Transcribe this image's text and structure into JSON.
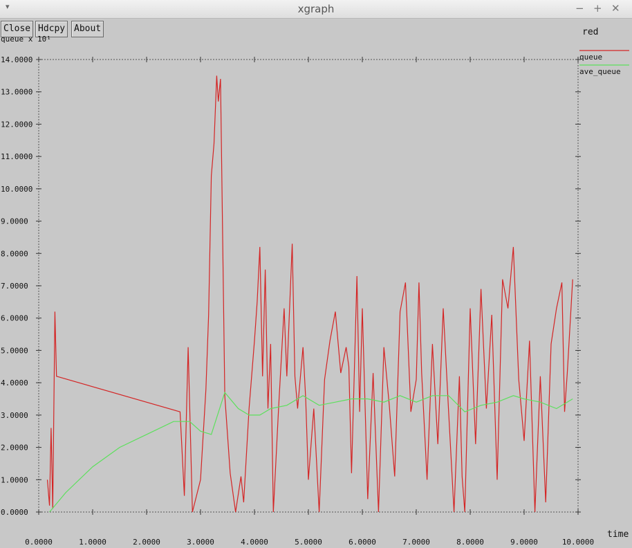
{
  "window": {
    "title": "xgraph",
    "menu_glyph": "▾",
    "minimize_glyph": "−",
    "maximize_glyph": "+",
    "close_glyph": "✕"
  },
  "toolbar": {
    "close_label": "Close",
    "hdcopy_label": "Hdcpy",
    "about_label": "About"
  },
  "chart_data": {
    "type": "line",
    "title": "red",
    "ylabel": "queue x 10¹",
    "xlabel": "time",
    "xlim": [
      0,
      10
    ],
    "ylim": [
      0,
      14
    ],
    "grid": false,
    "legend_position": "right",
    "x_ticks": [
      "0.0000",
      "1.0000",
      "2.0000",
      "3.0000",
      "4.0000",
      "5.0000",
      "6.0000",
      "7.0000",
      "8.0000",
      "9.0000",
      "10.0000"
    ],
    "y_ticks": [
      "0.0000",
      "1.0000",
      "2.0000",
      "3.0000",
      "4.0000",
      "5.0000",
      "6.0000",
      "7.0000",
      "8.0000",
      "9.0000",
      "10.0000",
      "11.0000",
      "12.0000",
      "13.0000",
      "14.0000"
    ],
    "series": [
      {
        "name": "queue",
        "color": "#d42424",
        "points": [
          [
            0.16,
            1.0
          ],
          [
            0.2,
            0.2
          ],
          [
            0.23,
            2.6
          ],
          [
            0.26,
            0.1
          ],
          [
            0.3,
            6.2
          ],
          [
            0.33,
            4.2
          ],
          [
            2.62,
            3.1
          ],
          [
            2.7,
            0.5
          ],
          [
            2.77,
            5.1
          ],
          [
            2.85,
            0.0
          ],
          [
            3.0,
            1.0
          ],
          [
            3.1,
            3.8
          ],
          [
            3.15,
            6.1
          ],
          [
            3.2,
            10.4
          ],
          [
            3.25,
            11.4
          ],
          [
            3.3,
            13.5
          ],
          [
            3.33,
            12.7
          ],
          [
            3.37,
            13.4
          ],
          [
            3.45,
            3.6
          ],
          [
            3.55,
            1.2
          ],
          [
            3.65,
            0.0
          ],
          [
            3.75,
            1.1
          ],
          [
            3.8,
            0.3
          ],
          [
            3.9,
            3.2
          ],
          [
            4.0,
            5.3
          ],
          [
            4.05,
            6.5
          ],
          [
            4.1,
            8.2
          ],
          [
            4.15,
            4.2
          ],
          [
            4.2,
            7.5
          ],
          [
            4.25,
            3.2
          ],
          [
            4.3,
            5.2
          ],
          [
            4.35,
            0.0
          ],
          [
            4.45,
            3.3
          ],
          [
            4.55,
            6.3
          ],
          [
            4.6,
            4.2
          ],
          [
            4.7,
            8.3
          ],
          [
            4.75,
            4.2
          ],
          [
            4.8,
            3.2
          ],
          [
            4.9,
            5.1
          ],
          [
            4.95,
            3.5
          ],
          [
            5.0,
            1.0
          ],
          [
            5.1,
            3.2
          ],
          [
            5.2,
            0.0
          ],
          [
            5.3,
            4.1
          ],
          [
            5.4,
            5.3
          ],
          [
            5.5,
            6.2
          ],
          [
            5.6,
            4.3
          ],
          [
            5.7,
            5.1
          ],
          [
            5.75,
            4.5
          ],
          [
            5.8,
            1.2
          ],
          [
            5.9,
            7.3
          ],
          [
            5.95,
            3.1
          ],
          [
            6.0,
            6.3
          ],
          [
            6.1,
            0.4
          ],
          [
            6.2,
            4.3
          ],
          [
            6.3,
            0.0
          ],
          [
            6.4,
            5.1
          ],
          [
            6.5,
            3.3
          ],
          [
            6.6,
            1.1
          ],
          [
            6.7,
            6.2
          ],
          [
            6.8,
            7.1
          ],
          [
            6.9,
            3.1
          ],
          [
            7.0,
            4.1
          ],
          [
            7.05,
            7.1
          ],
          [
            7.1,
            4.3
          ],
          [
            7.2,
            1.0
          ],
          [
            7.3,
            5.2
          ],
          [
            7.4,
            2.1
          ],
          [
            7.5,
            6.3
          ],
          [
            7.6,
            3.1
          ],
          [
            7.7,
            0.0
          ],
          [
            7.8,
            4.2
          ],
          [
            7.85,
            1.1
          ],
          [
            7.9,
            0.0
          ],
          [
            8.0,
            6.3
          ],
          [
            8.1,
            2.1
          ],
          [
            8.2,
            6.9
          ],
          [
            8.3,
            3.2
          ],
          [
            8.4,
            6.1
          ],
          [
            8.5,
            1.0
          ],
          [
            8.6,
            7.2
          ],
          [
            8.7,
            6.3
          ],
          [
            8.8,
            8.2
          ],
          [
            8.9,
            4.1
          ],
          [
            9.0,
            2.2
          ],
          [
            9.1,
            5.3
          ],
          [
            9.2,
            0.0
          ],
          [
            9.3,
            4.2
          ],
          [
            9.4,
            0.3
          ],
          [
            9.5,
            5.2
          ],
          [
            9.6,
            6.3
          ],
          [
            9.7,
            7.1
          ],
          [
            9.75,
            3.1
          ],
          [
            9.8,
            4.3
          ],
          [
            9.9,
            7.2
          ]
        ]
      },
      {
        "name": "ave_queue",
        "color": "#5ce05c",
        "points": [
          [
            0.2,
            0.0
          ],
          [
            0.5,
            0.6
          ],
          [
            1.0,
            1.4
          ],
          [
            1.5,
            2.0
          ],
          [
            2.0,
            2.4
          ],
          [
            2.5,
            2.8
          ],
          [
            2.8,
            2.8
          ],
          [
            3.0,
            2.5
          ],
          [
            3.2,
            2.4
          ],
          [
            3.45,
            3.7
          ],
          [
            3.7,
            3.2
          ],
          [
            3.9,
            3.0
          ],
          [
            4.1,
            3.0
          ],
          [
            4.3,
            3.2
          ],
          [
            4.6,
            3.3
          ],
          [
            4.9,
            3.6
          ],
          [
            5.2,
            3.3
          ],
          [
            5.5,
            3.4
          ],
          [
            5.8,
            3.5
          ],
          [
            6.1,
            3.5
          ],
          [
            6.4,
            3.4
          ],
          [
            6.7,
            3.6
          ],
          [
            7.0,
            3.4
          ],
          [
            7.3,
            3.6
          ],
          [
            7.6,
            3.6
          ],
          [
            7.9,
            3.1
          ],
          [
            8.2,
            3.3
          ],
          [
            8.5,
            3.4
          ],
          [
            8.8,
            3.6
          ],
          [
            9.0,
            3.5
          ],
          [
            9.3,
            3.4
          ],
          [
            9.6,
            3.2
          ],
          [
            9.9,
            3.5
          ]
        ]
      }
    ]
  }
}
